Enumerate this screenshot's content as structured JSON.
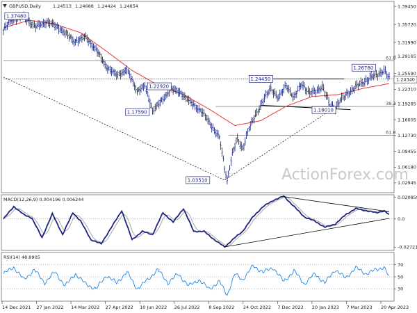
{
  "chart_data": {
    "type": "line",
    "header": {
      "symbol": "GBPUSD,Daily",
      "ohlc": [
        "1.24513",
        "1.24688",
        "1.24424",
        "1.24654"
      ]
    },
    "watermark": "ActionForex.com",
    "colors": {
      "price": "#0d1b6e",
      "ma": "#e53935",
      "macd": "#1a237e",
      "signal": "#9e9e9e",
      "rsi": "#1e88e5",
      "trend": "#000000",
      "box_border": "#1a237e"
    },
    "x_ticks": [
      "14 Dec 2021",
      "27 Jan 2022",
      "14 Mar 2022",
      "27 Apr 2022",
      "10 Jun 2022",
      "26 Jul 2022",
      "8 Sep 2022",
      "24 Oct 2022",
      "7 Dec 2022",
      "20 Jan 2023",
      "7 Mar 2023",
      "20 Apr 2023"
    ],
    "price_panel": {
      "y_ticks": [
        "1.39450",
        "1.35720",
        "1.31990",
        "1.29165",
        "1.25590",
        "1.22310",
        "1.19285",
        "1.16005",
        "1.12730",
        "1.09455",
        "1.06180",
        "1.02945"
      ],
      "current_price": "1.24340",
      "ylim": [
        1.012,
        1.402
      ],
      "anchors": [
        {
          "x": 0,
          "y": 1.345
        },
        {
          "x": 6,
          "y": 1.366
        },
        {
          "x": 15,
          "y": 1.374
        },
        {
          "x": 25,
          "y": 1.352
        },
        {
          "x": 34,
          "y": 1.363
        },
        {
          "x": 44,
          "y": 1.349
        },
        {
          "x": 55,
          "y": 1.322
        },
        {
          "x": 64,
          "y": 1.331
        },
        {
          "x": 72,
          "y": 1.305
        },
        {
          "x": 80,
          "y": 1.27
        },
        {
          "x": 88,
          "y": 1.252
        },
        {
          "x": 96,
          "y": 1.263
        },
        {
          "x": 104,
          "y": 1.22
        },
        {
          "x": 110,
          "y": 1.229
        },
        {
          "x": 116,
          "y": 1.18
        },
        {
          "x": 122,
          "y": 1.195
        },
        {
          "x": 130,
          "y": 1.224
        },
        {
          "x": 138,
          "y": 1.216
        },
        {
          "x": 146,
          "y": 1.194
        },
        {
          "x": 154,
          "y": 1.178
        },
        {
          "x": 162,
          "y": 1.147
        },
        {
          "x": 168,
          "y": 1.123
        },
        {
          "x": 172,
          "y": 1.06
        },
        {
          "x": 174,
          "y": 1.035
        },
        {
          "x": 178,
          "y": 1.09
        },
        {
          "x": 182,
          "y": 1.12
        },
        {
          "x": 186,
          "y": 1.1
        },
        {
          "x": 190,
          "y": 1.135
        },
        {
          "x": 196,
          "y": 1.17
        },
        {
          "x": 202,
          "y": 1.2
        },
        {
          "x": 208,
          "y": 1.225
        },
        {
          "x": 214,
          "y": 1.205
        },
        {
          "x": 220,
          "y": 1.232
        },
        {
          "x": 226,
          "y": 1.205
        },
        {
          "x": 232,
          "y": 1.235
        },
        {
          "x": 238,
          "y": 1.215
        },
        {
          "x": 244,
          "y": 1.22
        },
        {
          "x": 248,
          "y": 1.23
        },
        {
          "x": 254,
          "y": 1.19
        },
        {
          "x": 258,
          "y": 1.185
        },
        {
          "x": 262,
          "y": 1.2
        },
        {
          "x": 268,
          "y": 1.215
        },
        {
          "x": 274,
          "y": 1.228
        },
        {
          "x": 280,
          "y": 1.238
        },
        {
          "x": 286,
          "y": 1.248
        },
        {
          "x": 292,
          "y": 1.255
        },
        {
          "x": 296,
          "y": 1.263
        },
        {
          "x": 300,
          "y": 1.245
        }
      ],
      "ma_anchors": [
        {
          "x": 0,
          "y": 1.35
        },
        {
          "x": 20,
          "y": 1.366
        },
        {
          "x": 40,
          "y": 1.358
        },
        {
          "x": 60,
          "y": 1.34
        },
        {
          "x": 80,
          "y": 1.302
        },
        {
          "x": 100,
          "y": 1.262
        },
        {
          "x": 120,
          "y": 1.232
        },
        {
          "x": 140,
          "y": 1.212
        },
        {
          "x": 160,
          "y": 1.182
        },
        {
          "x": 180,
          "y": 1.148
        },
        {
          "x": 200,
          "y": 1.158
        },
        {
          "x": 220,
          "y": 1.188
        },
        {
          "x": 240,
          "y": 1.208
        },
        {
          "x": 260,
          "y": 1.212
        },
        {
          "x": 280,
          "y": 1.225
        },
        {
          "x": 300,
          "y": 1.235
        }
      ],
      "h_levels": [
        {
          "label": "61.8",
          "value": 1.282,
          "style": "solid",
          "x_start": 0
        },
        {
          "label": "",
          "value": 1.2445,
          "style": "dotted",
          "x_start": 0
        },
        {
          "label": "38.2",
          "value": 1.1875,
          "style": "solid",
          "x_start": 165
        },
        {
          "label": "61.8",
          "value": 1.1275,
          "style": "solid",
          "x_start": 175
        }
      ],
      "box_labels": [
        {
          "text": "1.37480",
          "x": 1,
          "y": 1.3748
        },
        {
          "text": "1.22920",
          "x": 112,
          "y": 1.2292
        },
        {
          "text": "1.17590",
          "x": 95,
          "y": 1.1759
        },
        {
          "text": "1.03510",
          "x": 142,
          "y": 1.0351
        },
        {
          "text": "1.24450",
          "x": 191,
          "y": 1.2445
        },
        {
          "text": "1.26780",
          "x": 271,
          "y": 1.2678
        },
        {
          "text": "1.18010",
          "x": 240,
          "y": 1.1801
        }
      ],
      "trendlines": [
        {
          "x1": 0,
          "y1": 1.2485,
          "x2": 172,
          "y2": 1.0351,
          "style": "dashed"
        },
        {
          "x1": 172,
          "y1": 1.0351,
          "x2": 258,
          "y2": 1.186,
          "style": "dashed"
        },
        {
          "x1": 200,
          "y1": 1.2445,
          "x2": 265,
          "y2": 1.2445,
          "style": "solid"
        },
        {
          "x1": 200,
          "y1": 1.19,
          "x2": 270,
          "y2": 1.181,
          "style": "solid"
        }
      ]
    },
    "macd_panel": {
      "label": "MACD(12,26,9) 0.004196 0.006244",
      "y_ticks": [
        "0.020858",
        "0.0",
        "-0.027213"
      ],
      "ylim": [
        -0.029,
        0.022
      ],
      "anchors": [
        {
          "x": 0,
          "y": 0.0
        },
        {
          "x": 8,
          "y": 0.012
        },
        {
          "x": 16,
          "y": 0.004
        },
        {
          "x": 22,
          "y": 0.001
        },
        {
          "x": 30,
          "y": -0.018
        },
        {
          "x": 38,
          "y": 0.005
        },
        {
          "x": 46,
          "y": -0.015
        },
        {
          "x": 54,
          "y": 0.006
        },
        {
          "x": 60,
          "y": -0.002
        },
        {
          "x": 68,
          "y": -0.02
        },
        {
          "x": 76,
          "y": -0.024
        },
        {
          "x": 84,
          "y": -0.008
        },
        {
          "x": 92,
          "y": 0.008
        },
        {
          "x": 100,
          "y": -0.02
        },
        {
          "x": 108,
          "y": -0.012
        },
        {
          "x": 116,
          "y": -0.015
        },
        {
          "x": 124,
          "y": 0.006
        },
        {
          "x": 132,
          "y": -0.003
        },
        {
          "x": 140,
          "y": 0.01
        },
        {
          "x": 148,
          "y": -0.012
        },
        {
          "x": 156,
          "y": -0.012
        },
        {
          "x": 164,
          "y": -0.02
        },
        {
          "x": 172,
          "y": -0.027
        },
        {
          "x": 180,
          "y": -0.018
        },
        {
          "x": 186,
          "y": -0.012
        },
        {
          "x": 194,
          "y": 0.002
        },
        {
          "x": 202,
          "y": 0.012
        },
        {
          "x": 210,
          "y": 0.018
        },
        {
          "x": 218,
          "y": 0.022
        },
        {
          "x": 226,
          "y": 0.012
        },
        {
          "x": 234,
          "y": 0.002
        },
        {
          "x": 242,
          "y": -0.002
        },
        {
          "x": 250,
          "y": -0.008
        },
        {
          "x": 258,
          "y": -0.005
        },
        {
          "x": 266,
          "y": 0.004
        },
        {
          "x": 274,
          "y": 0.01
        },
        {
          "x": 282,
          "y": 0.008
        },
        {
          "x": 290,
          "y": 0.006
        },
        {
          "x": 296,
          "y": 0.008
        },
        {
          "x": 300,
          "y": 0.004
        }
      ],
      "trendlines": [
        {
          "x1": 172,
          "y1": -0.027,
          "x2": 300,
          "y2": 0.0005
        },
        {
          "x1": 218,
          "y1": 0.0215,
          "x2": 300,
          "y2": 0.007
        }
      ]
    },
    "rsi_panel": {
      "label": "RSI(14) 48.8905",
      "y_ticks": [
        "70",
        "50",
        "30"
      ],
      "ylim": [
        12,
        88
      ],
      "anchors": [
        {
          "x": 0,
          "y": 55
        },
        {
          "x": 8,
          "y": 66
        },
        {
          "x": 16,
          "y": 45
        },
        {
          "x": 24,
          "y": 62
        },
        {
          "x": 32,
          "y": 40
        },
        {
          "x": 40,
          "y": 58
        },
        {
          "x": 48,
          "y": 35
        },
        {
          "x": 56,
          "y": 55
        },
        {
          "x": 64,
          "y": 38
        },
        {
          "x": 72,
          "y": 30
        },
        {
          "x": 80,
          "y": 52
        },
        {
          "x": 88,
          "y": 40
        },
        {
          "x": 96,
          "y": 58
        },
        {
          "x": 104,
          "y": 30
        },
        {
          "x": 112,
          "y": 45
        },
        {
          "x": 120,
          "y": 62
        },
        {
          "x": 128,
          "y": 40
        },
        {
          "x": 136,
          "y": 55
        },
        {
          "x": 144,
          "y": 35
        },
        {
          "x": 152,
          "y": 45
        },
        {
          "x": 160,
          "y": 30
        },
        {
          "x": 168,
          "y": 42
        },
        {
          "x": 174,
          "y": 20
        },
        {
          "x": 180,
          "y": 55
        },
        {
          "x": 186,
          "y": 45
        },
        {
          "x": 194,
          "y": 68
        },
        {
          "x": 202,
          "y": 58
        },
        {
          "x": 210,
          "y": 65
        },
        {
          "x": 218,
          "y": 42
        },
        {
          "x": 226,
          "y": 60
        },
        {
          "x": 234,
          "y": 38
        },
        {
          "x": 242,
          "y": 55
        },
        {
          "x": 250,
          "y": 40
        },
        {
          "x": 258,
          "y": 62
        },
        {
          "x": 266,
          "y": 48
        },
        {
          "x": 274,
          "y": 65
        },
        {
          "x": 282,
          "y": 55
        },
        {
          "x": 290,
          "y": 62
        },
        {
          "x": 296,
          "y": 66
        },
        {
          "x": 300,
          "y": 49
        }
      ]
    }
  }
}
